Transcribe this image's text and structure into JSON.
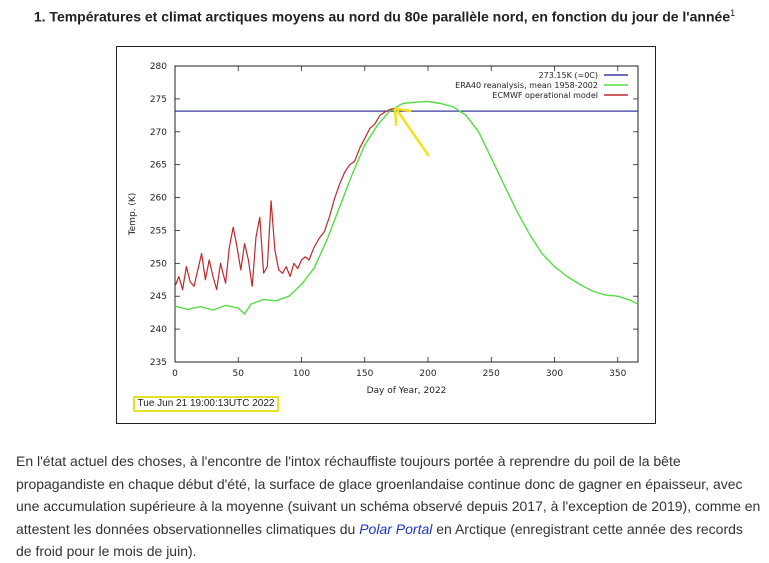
{
  "title": {
    "text": "1. Températures et climat arctiques moyens au nord du 80e parallèle nord, en fonction du jour de l'année",
    "footnote_ref": "1"
  },
  "timestamp": "Tue Jun 21 19:00:13UTC 2022",
  "paragraph": {
    "text_before_link": "En l'état actuel des choses, à l'encontre de l'intox réchauffiste toujours portée à reprendre du poil de la bête propagandiste en chaque début d'été, la surface de glace groenlandaise continue donc de gagner en épaisseur, avec une accumulation supérieure à la moyenne (suivant un schéma observé depuis 2017, à l'exception de 2019), comme en attestent les données observationnelles climatiques du ",
    "link_text": "Polar Portal",
    "text_after_link": " en Arctique (enregistrant cette année des records de froid pour le mois de juin)."
  },
  "chart_data": {
    "type": "line",
    "xlabel": "Day of Year, 2022",
    "ylabel": "Temp. (K)",
    "xlim": [
      0,
      366
    ],
    "ylim": [
      235,
      280
    ],
    "xticks": [
      0,
      50,
      100,
      150,
      200,
      250,
      300,
      350
    ],
    "yticks": [
      235,
      240,
      245,
      250,
      255,
      260,
      265,
      270,
      275,
      280
    ],
    "grid": false,
    "legend_position": "top-right",
    "colors": {
      "freezing": "#3a3a9e",
      "era40": "#55dd44",
      "ecmwf": "#c0282a",
      "arrow": "#f2e31a"
    },
    "series": [
      {
        "name": "273.15K (=0C)",
        "x": [
          0,
          366
        ],
        "values": [
          273.15,
          273.15
        ]
      },
      {
        "name": "ERA40 reanalysis, mean 1958-2002",
        "x": [
          0,
          10,
          20,
          30,
          40,
          50,
          55,
          60,
          70,
          80,
          90,
          100,
          110,
          120,
          130,
          140,
          150,
          160,
          170,
          180,
          190,
          200,
          210,
          220,
          230,
          240,
          250,
          260,
          270,
          280,
          290,
          300,
          310,
          320,
          330,
          340,
          350,
          360,
          366
        ],
        "values": [
          243.5,
          243.0,
          243.4,
          242.9,
          243.6,
          243.2,
          242.3,
          243.8,
          244.5,
          244.3,
          245.0,
          246.8,
          249.3,
          253.5,
          258.5,
          263.5,
          268.0,
          271.0,
          273.2,
          274.3,
          274.5,
          274.6,
          274.3,
          273.8,
          272.5,
          270.0,
          266.0,
          262.0,
          258.0,
          254.5,
          251.5,
          249.5,
          248.0,
          246.8,
          245.8,
          245.2,
          245.0,
          244.4,
          243.8
        ]
      },
      {
        "name": "ECMWF operational model",
        "x": [
          0,
          3,
          6,
          9,
          12,
          15,
          18,
          21,
          24,
          27,
          30,
          33,
          36,
          40,
          43,
          46,
          49,
          52,
          55,
          58,
          61,
          64,
          67,
          70,
          73,
          76,
          79,
          82,
          85,
          88,
          91,
          94,
          97,
          100,
          103,
          106,
          110,
          114,
          118,
          122,
          126,
          130,
          134,
          138,
          142,
          146,
          150,
          154,
          158,
          162,
          166,
          170,
          174
        ],
        "values": [
          246.5,
          248.0,
          246.0,
          249.5,
          247.2,
          246.5,
          249.0,
          251.5,
          247.5,
          250.5,
          248.0,
          246.0,
          250.0,
          247.0,
          252.5,
          255.5,
          252.5,
          249.0,
          253.0,
          250.5,
          246.5,
          254.0,
          257.0,
          248.5,
          249.5,
          259.5,
          252.0,
          249.0,
          248.5,
          249.5,
          248.0,
          250.0,
          249.2,
          250.5,
          251.0,
          250.5,
          252.5,
          253.8,
          254.8,
          257.0,
          259.8,
          262.0,
          263.8,
          265.0,
          265.5,
          267.5,
          269.0,
          270.5,
          271.2,
          272.5,
          273.0,
          273.4,
          273.6
        ]
      }
    ]
  }
}
